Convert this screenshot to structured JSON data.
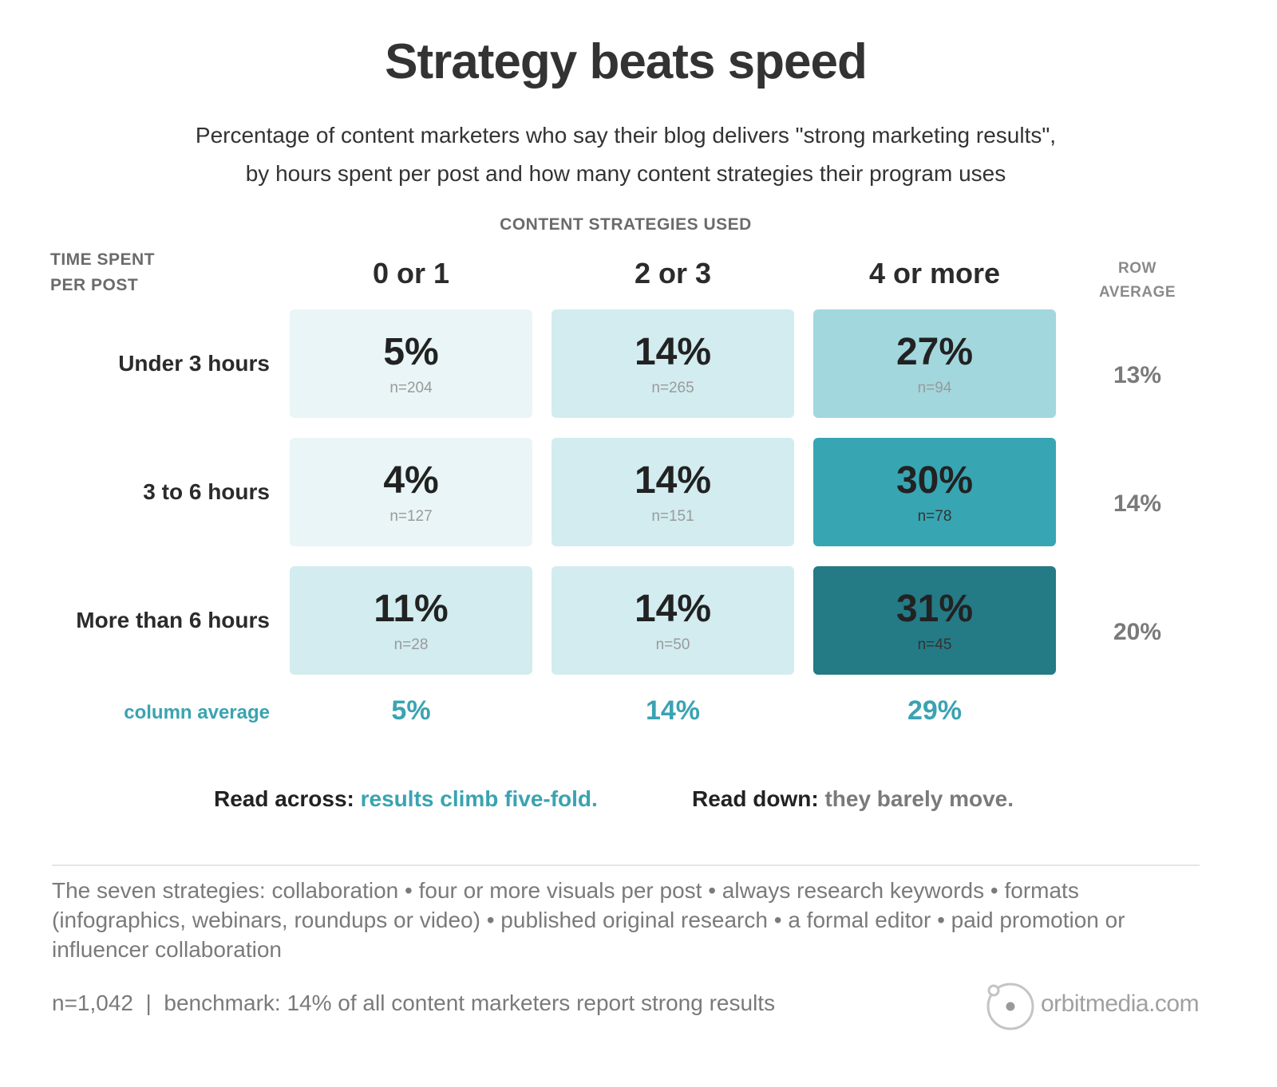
{
  "title": "Strategy beats speed",
  "subtitle_line1": "Percentage of content marketers who say their blog delivers \"strong marketing results\",",
  "subtitle_line2": "by hours spent per post and how many content strategies their program uses",
  "col_axis_label": "CONTENT STRATEGIES USED",
  "row_axis_label_line1": "TIME SPENT",
  "row_axis_label_line2": "PER POST",
  "row_avg_label_line1": "ROW",
  "row_avg_label_line2": "AVERAGE",
  "colors": {
    "teal_accent": "#3aa3b1",
    "scale_lightest": "#e9f5f6",
    "scale_light": "#d2ecf0",
    "scale_mid": "#a2d7de",
    "scale_strong": "#38a5b3",
    "scale_darkest": "#247a85"
  },
  "chart_data": {
    "type": "heatmap",
    "title": "Strategy beats speed",
    "xlabel": "CONTENT STRATEGIES USED",
    "ylabel": "TIME SPENT PER POST",
    "columns": [
      "0 or 1",
      "2 or 3",
      "4 or more"
    ],
    "rows": [
      "Under 3 hours",
      "3 to 6 hours",
      "More than 6 hours"
    ],
    "values": [
      [
        5,
        14,
        27
      ],
      [
        4,
        14,
        30
      ],
      [
        11,
        14,
        31
      ]
    ],
    "value_labels": [
      [
        "5%",
        "14%",
        "27%"
      ],
      [
        "4%",
        "14%",
        "30%"
      ],
      [
        "11%",
        "14%",
        "31%"
      ]
    ],
    "n_labels": [
      [
        "n=204",
        "n=265",
        "n=94"
      ],
      [
        "n=127",
        "n=151",
        "n=78"
      ],
      [
        "n=28",
        "n=50",
        "n=45"
      ]
    ],
    "row_averages": [
      "13%",
      "14%",
      "20%"
    ],
    "column_average_label": "column average",
    "column_averages": [
      "5%",
      "14%",
      "29%"
    ]
  },
  "read_across_key": "Read across: ",
  "read_across_value": "results climb five-fold.",
  "read_down_key": "Read down: ",
  "read_down_value": "they barely move.",
  "footnote": "The seven strategies: collaboration • four or more visuals per post • always research keywords • formats (infographics, webinars, roundups or video) • published original research • a formal editor • paid promotion or influencer collaboration",
  "bottom_line": "n=1,042  |  benchmark: 14% of all content marketers report strong results",
  "logo_text": "orbitmedia.com"
}
